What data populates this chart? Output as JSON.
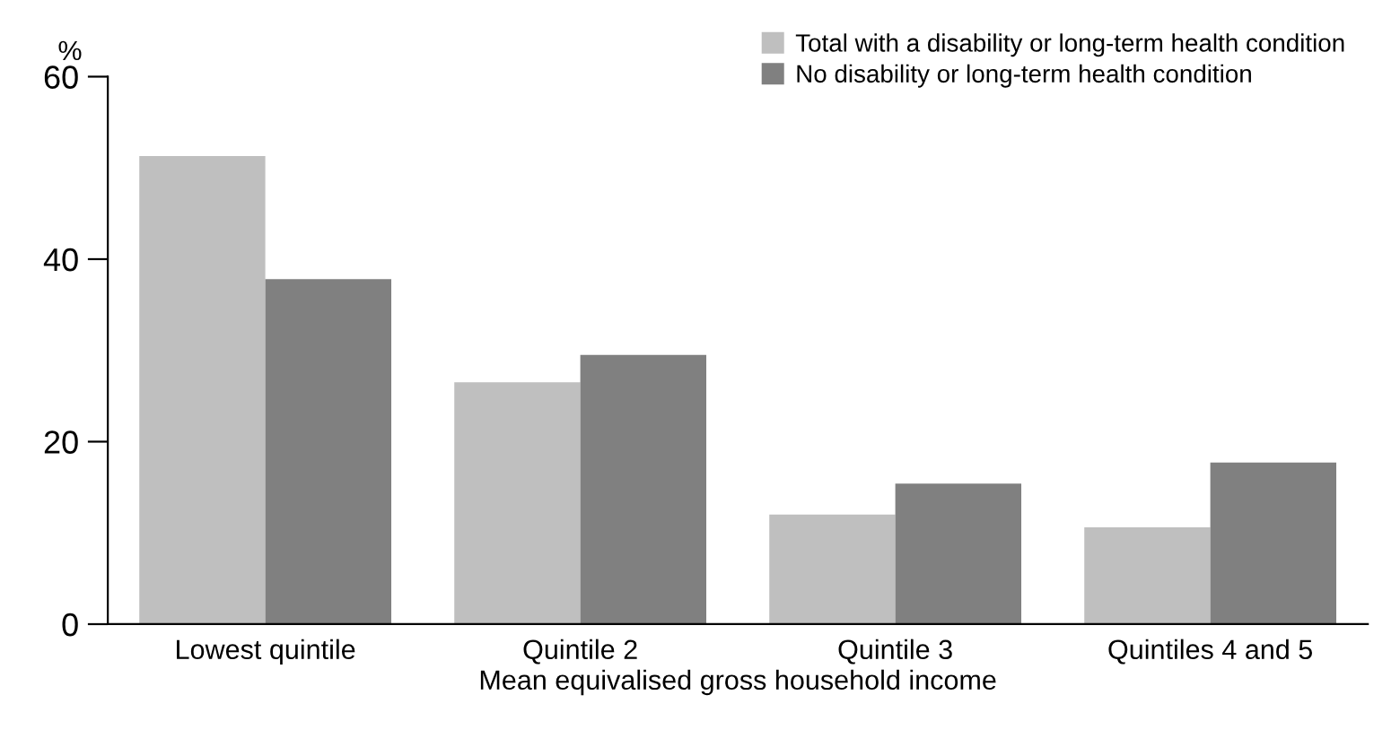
{
  "chart_data": {
    "type": "bar",
    "ylabel": "%",
    "xlabel": "Mean equivalised gross household income",
    "categories": [
      "Lowest quintile",
      "Quintile 2",
      "Quintile 3",
      "Quintiles 4 and 5"
    ],
    "series": [
      {
        "name": "Total with a disability or long-term health condition",
        "color": "#bfbfbf",
        "values": [
          51.3,
          26.5,
          12.0,
          10.6
        ]
      },
      {
        "name": "No disability or long-term health condition",
        "color": "#808080",
        "values": [
          37.8,
          29.5,
          15.4,
          17.7
        ]
      }
    ],
    "ylim": [
      0,
      60
    ],
    "yticks": [
      0,
      20,
      40,
      60
    ],
    "grid": false,
    "legend": "top right"
  }
}
